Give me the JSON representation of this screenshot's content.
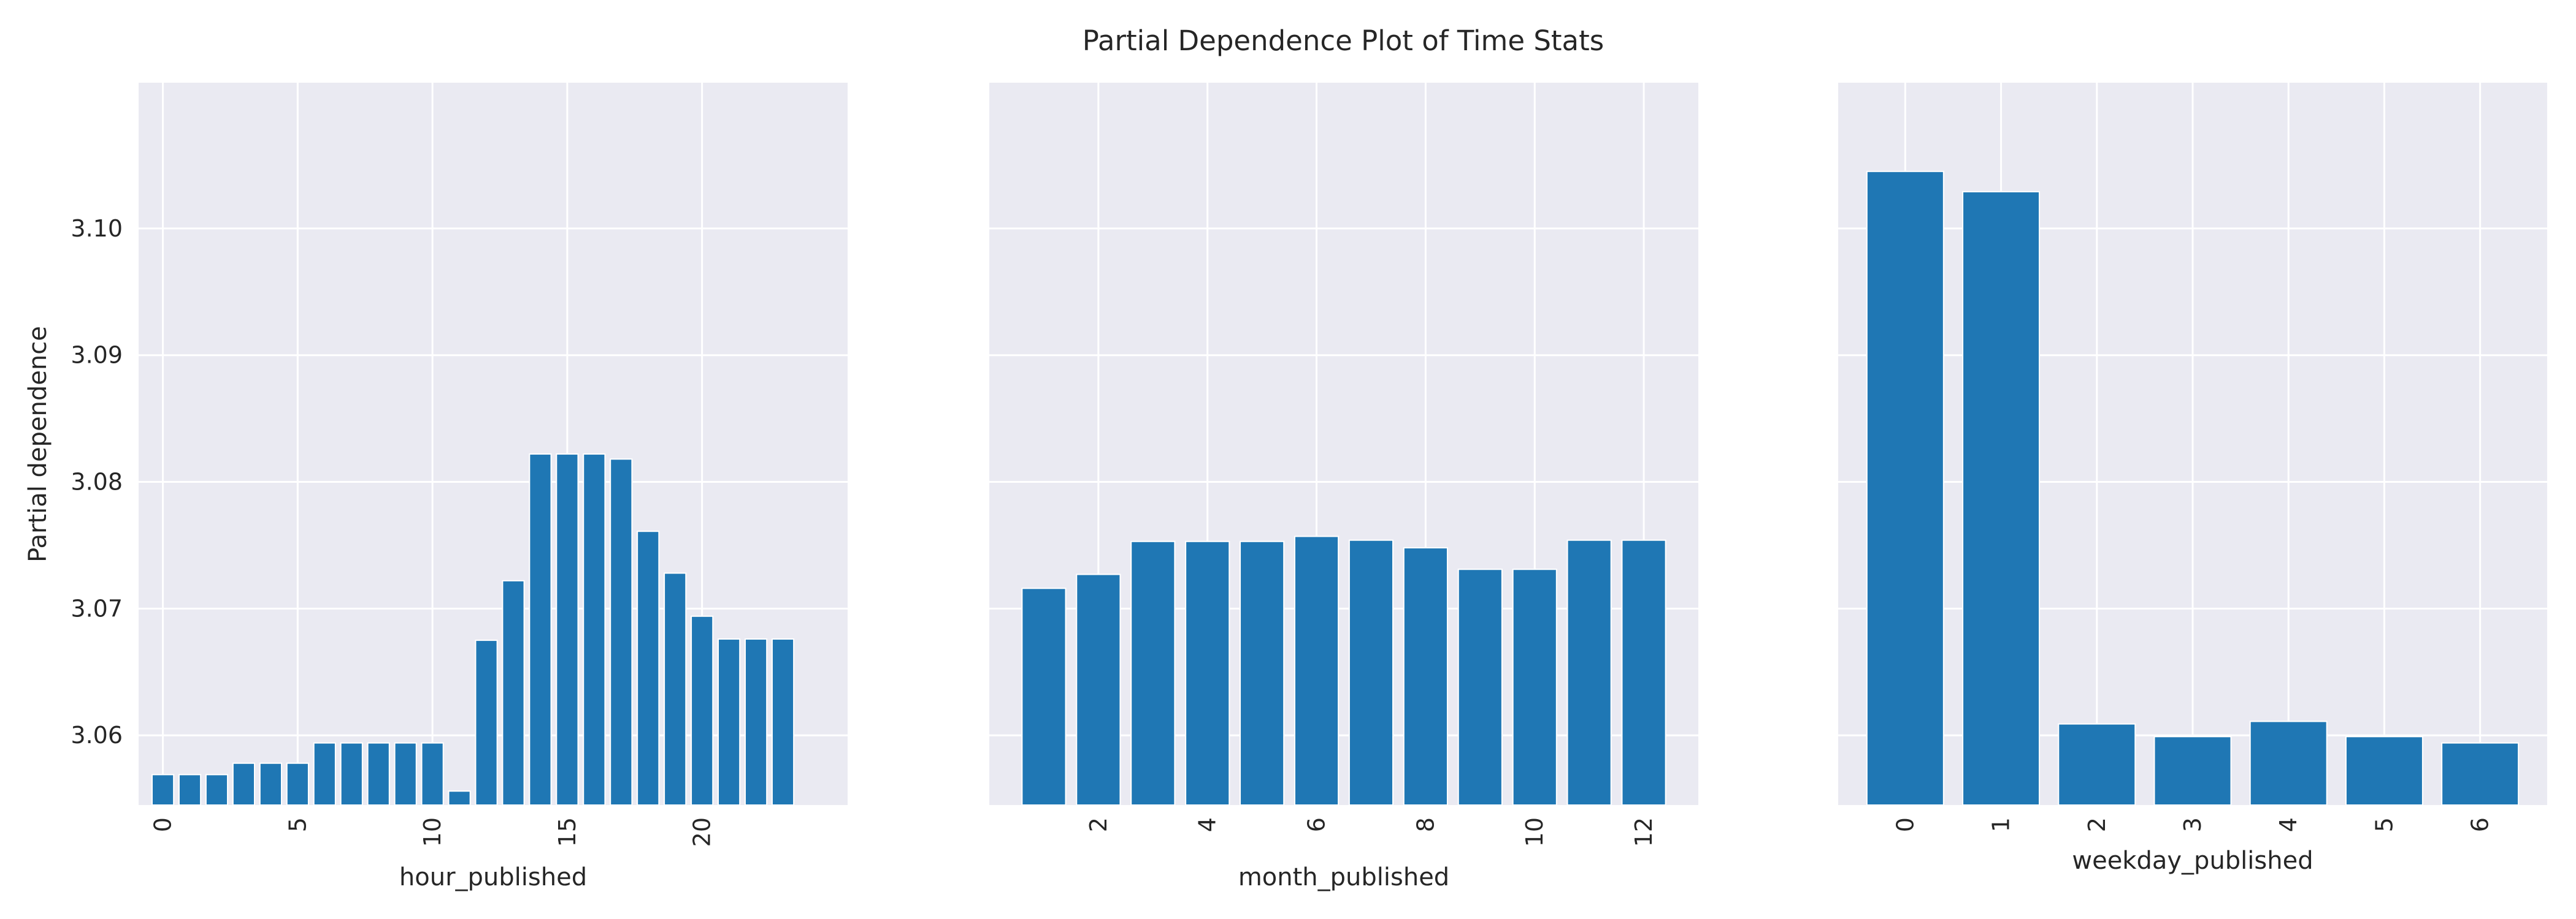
{
  "figure_title": "Partial Dependence Plot of Time Stats",
  "shared_ylabel": "Partial dependence",
  "colors": {
    "bar": "#1f77b4",
    "panel_bg": "#eaeaf2",
    "grid": "#ffffff",
    "text": "#262626"
  },
  "chart_data": [
    {
      "type": "bar",
      "xlabel": "hour_published",
      "ylabel": "Partial dependence",
      "x": [
        0,
        1,
        2,
        3,
        4,
        5,
        6,
        7,
        8,
        9,
        10,
        11,
        12,
        13,
        14,
        15,
        16,
        17,
        18,
        19,
        20,
        21,
        22,
        23
      ],
      "values": [
        3.0569,
        3.0569,
        3.0569,
        3.0578,
        3.0578,
        3.0578,
        3.0594,
        3.0594,
        3.0594,
        3.0594,
        3.0594,
        3.0556,
        3.0675,
        3.0722,
        3.0822,
        3.0822,
        3.0822,
        3.0818,
        3.0761,
        3.0728,
        3.0694,
        3.0676,
        3.0676,
        3.0676
      ],
      "xticks": [
        0,
        5,
        10,
        15,
        20
      ],
      "xticklabels": [
        "0",
        "5",
        "10",
        "15",
        "20"
      ],
      "xtick_rotation": 90,
      "xlim": [
        -0.9,
        25.4
      ],
      "ylim": [
        3.0545,
        3.1115
      ],
      "yticks": [
        3.06,
        3.07,
        3.08,
        3.09,
        3.1
      ],
      "yticklabels": [
        "3.06",
        "3.07",
        "3.08",
        "3.09",
        "3.10"
      ],
      "grid": true
    },
    {
      "type": "bar",
      "xlabel": "month_published",
      "x": [
        1,
        2,
        3,
        4,
        5,
        6,
        7,
        8,
        9,
        10,
        11,
        12
      ],
      "values": [
        3.0716,
        3.0727,
        3.0753,
        3.0753,
        3.0753,
        3.0757,
        3.0754,
        3.0748,
        3.0731,
        3.0731,
        3.0754,
        3.0754
      ],
      "xticks": [
        2,
        4,
        6,
        8,
        10,
        12
      ],
      "xticklabels": [
        "2",
        "4",
        "6",
        "8",
        "10",
        "12"
      ],
      "xtick_rotation": 90,
      "xlim": [
        0.0,
        13.0
      ],
      "ylim": [
        3.0545,
        3.1115
      ],
      "yticks": [
        3.06,
        3.07,
        3.08,
        3.09,
        3.1
      ],
      "grid": true
    },
    {
      "type": "bar",
      "xlabel": "weekday_published",
      "x": [
        0,
        1,
        2,
        3,
        4,
        5,
        6
      ],
      "values": [
        3.1045,
        3.1029,
        3.0609,
        3.0599,
        3.0611,
        3.0599,
        3.0594
      ],
      "xticks": [
        0,
        1,
        2,
        3,
        4,
        5,
        6
      ],
      "xticklabels": [
        "0",
        "1",
        "2",
        "3",
        "4",
        "5",
        "6"
      ],
      "xtick_rotation": 90,
      "xlim": [
        -0.7,
        6.7
      ],
      "ylim": [
        3.0545,
        3.1115
      ],
      "yticks": [
        3.06,
        3.07,
        3.08,
        3.09,
        3.1
      ],
      "grid": true
    }
  ]
}
